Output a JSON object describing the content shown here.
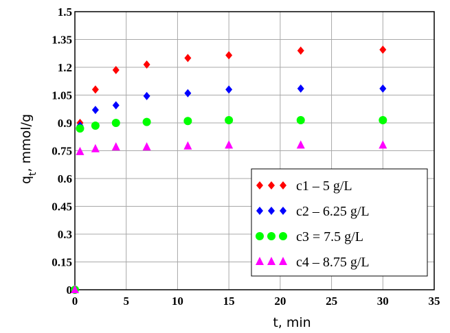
{
  "chart_data": {
    "type": "scatter",
    "xlabel": "t, min",
    "ylabel_main": "q",
    "ylabel_sub": "t",
    "ylabel_rest": ", mmol/g",
    "xlim": [
      0,
      35
    ],
    "ylim": [
      0,
      1.5
    ],
    "x_ticks": [
      "0",
      "5",
      "10",
      "15",
      "20",
      "25",
      "30",
      "35"
    ],
    "y_ticks": [
      "0",
      "0.15",
      "0.3",
      "0.45",
      "0.6",
      "0.75",
      "0.9",
      "1.05",
      "1.2",
      "1.35",
      "1.5"
    ],
    "grid": true,
    "legend_position": "bottom-right",
    "series": [
      {
        "name": "c1 – 5 g/L",
        "marker": "diamond",
        "color": "#ff0000",
        "x": [
          0,
          0.5,
          2,
          4,
          7,
          11,
          15,
          22,
          30
        ],
        "y": [
          0,
          0.9,
          1.08,
          1.185,
          1.215,
          1.25,
          1.265,
          1.29,
          1.295
        ]
      },
      {
        "name": "c2 – 6.25 g/L",
        "marker": "diamond",
        "color": "#0000ff",
        "x": [
          0,
          0.5,
          2,
          4,
          7,
          11,
          15,
          22,
          30
        ],
        "y": [
          0,
          0.885,
          0.97,
          0.995,
          1.045,
          1.06,
          1.08,
          1.085,
          1.085
        ]
      },
      {
        "name": "c3 = 7.5 g/L",
        "marker": "circle",
        "color": "#00ff00",
        "x": [
          0,
          0.5,
          2,
          4,
          7,
          11,
          15,
          22,
          30
        ],
        "y": [
          0,
          0.87,
          0.885,
          0.9,
          0.905,
          0.91,
          0.915,
          0.915,
          0.915
        ]
      },
      {
        "name": "c4 – 8.75 g/L",
        "marker": "triangle",
        "color": "#ff00ff",
        "x": [
          0,
          0.5,
          2,
          4,
          7,
          11,
          15,
          22,
          30
        ],
        "y": [
          0,
          0.745,
          0.76,
          0.77,
          0.77,
          0.775,
          0.78,
          0.78,
          0.78
        ]
      }
    ]
  }
}
